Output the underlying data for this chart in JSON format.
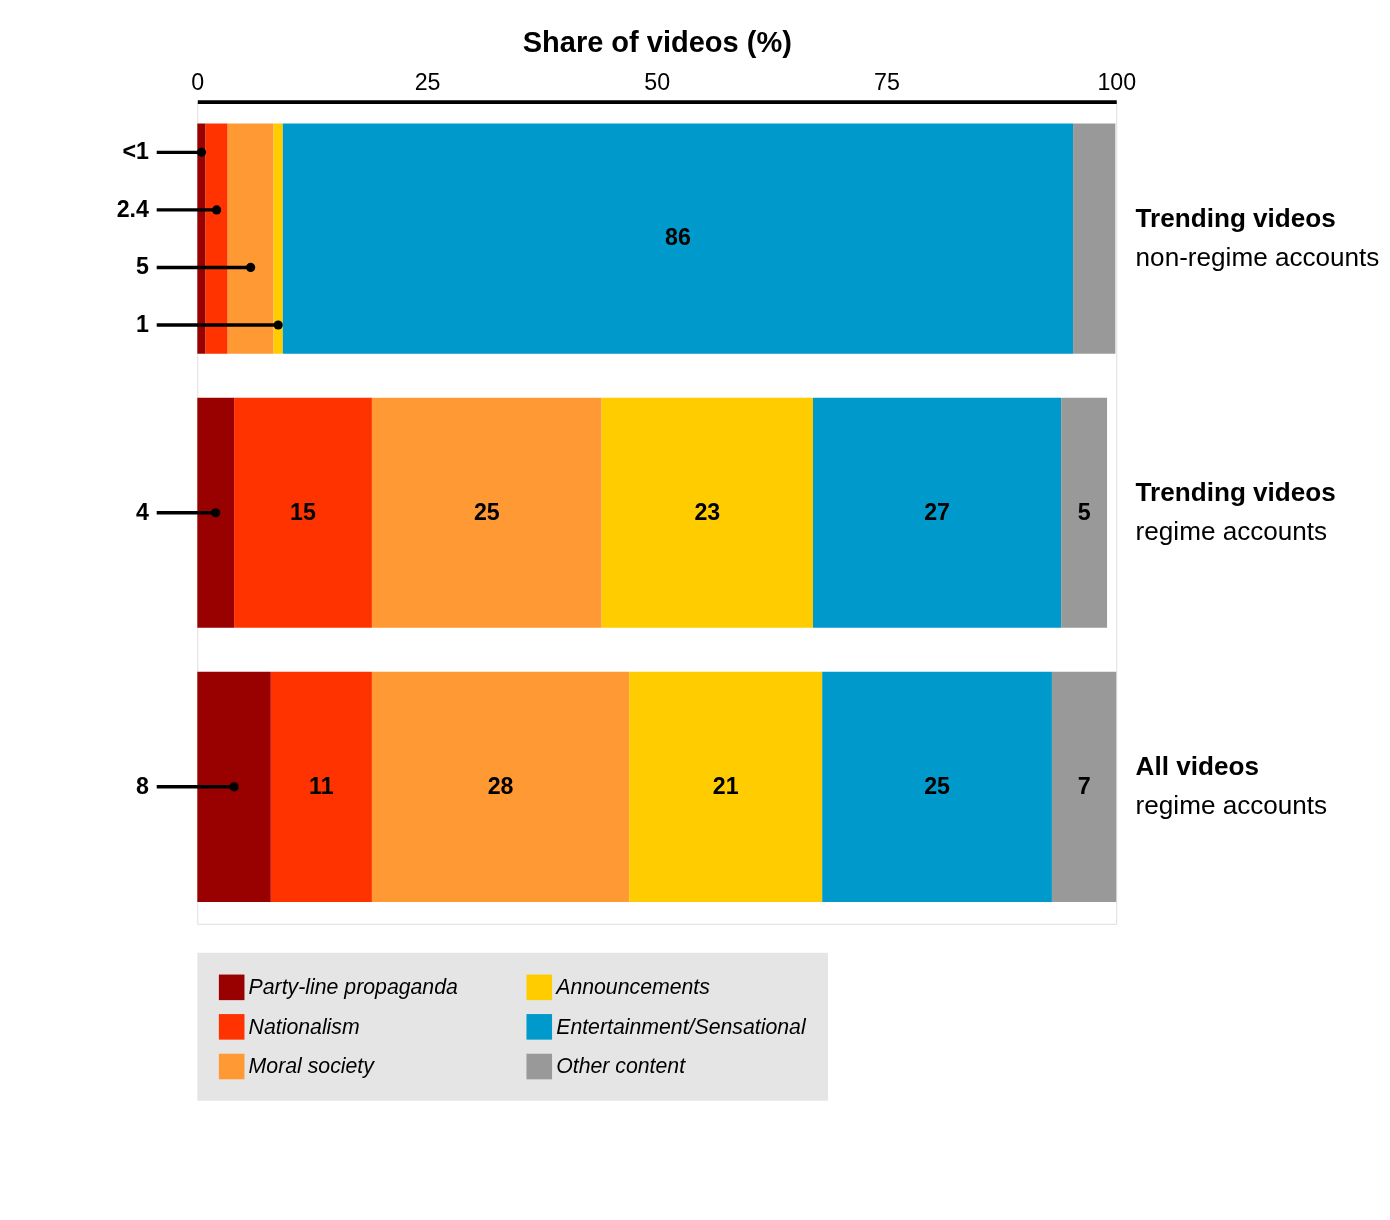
{
  "chart_data": {
    "type": "bar",
    "orientation": "horizontal",
    "stacked": true,
    "xlabel": "Share of videos (%)",
    "categories": [
      "Trending videos\nnon-regime accounts",
      "Trending videos\nregime accounts",
      "All videos\nregime accounts"
    ],
    "series": [
      {
        "name": "Party-line propaganda",
        "color": "#990000",
        "values": [
          0.9,
          4,
          8
        ],
        "value_labels": [
          "<1",
          "4",
          "8"
        ]
      },
      {
        "name": "Nationalism",
        "color": "#ff3300",
        "values": [
          2.4,
          15,
          11
        ],
        "value_labels": [
          "2.4",
          "15",
          "11"
        ]
      },
      {
        "name": "Moral society",
        "color": "#ff9933",
        "values": [
          5,
          25,
          28
        ],
        "value_labels": [
          "5",
          "25",
          "28"
        ]
      },
      {
        "name": "Announcements",
        "color": "#ffcc00",
        "values": [
          1,
          23,
          21
        ],
        "value_labels": [
          "1",
          "23",
          "21"
        ]
      },
      {
        "name": "Entertainment/Sensational",
        "color": "#0099cc",
        "values": [
          86,
          27,
          25
        ],
        "value_labels": [
          "86",
          "27",
          "25"
        ]
      },
      {
        "name": "Other content",
        "color": "#999999",
        "values": [
          4.6,
          5,
          7
        ],
        "value_labels": [
          null,
          "5",
          "7"
        ]
      }
    ],
    "xlim": [
      0,
      100
    ],
    "xticks": [
      0,
      25,
      50,
      75,
      100
    ],
    "grid": false,
    "legend": "bottom"
  }
}
